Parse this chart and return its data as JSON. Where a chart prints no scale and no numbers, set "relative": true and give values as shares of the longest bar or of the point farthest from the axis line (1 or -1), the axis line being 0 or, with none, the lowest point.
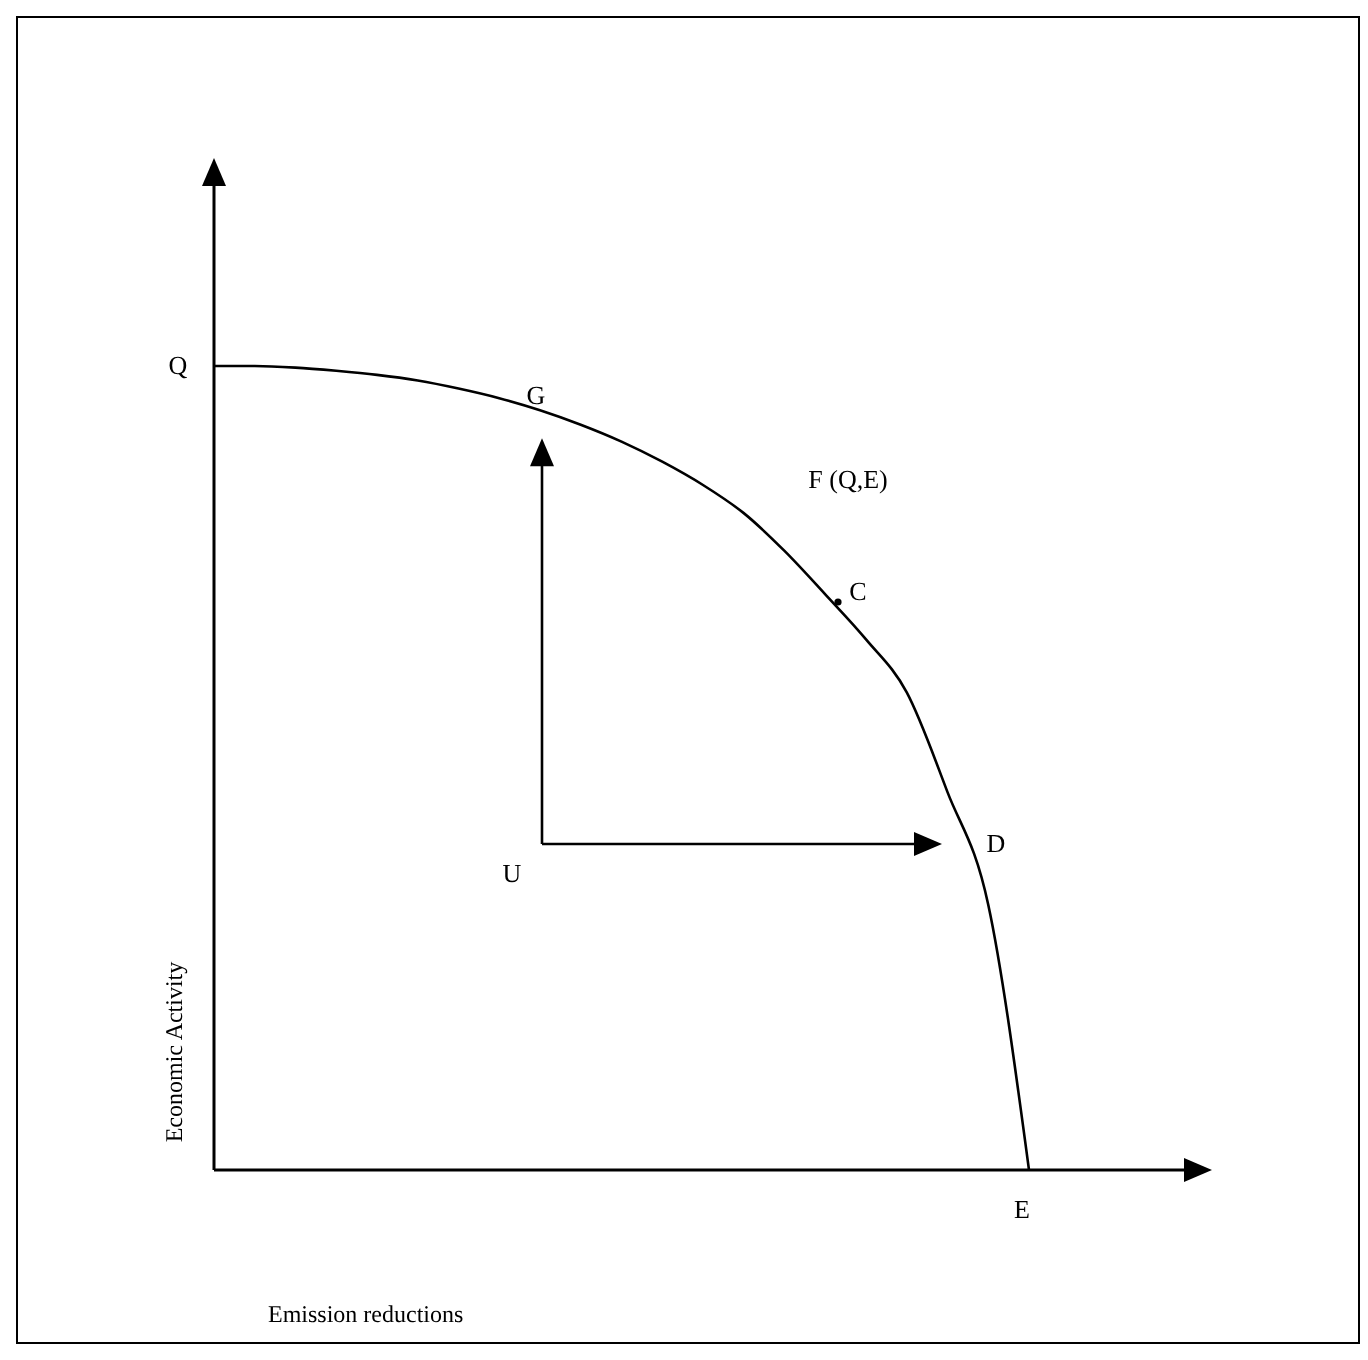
{
  "chart_data": {
    "type": "line",
    "relative": true,
    "ylabel": "Economic Activity",
    "grid": false,
    "legend": false,
    "categories": [
      null,
      null,
      null,
      null,
      null,
      null,
      null,
      null,
      null,
      null,
      null,
      null,
      null,
      null,
      null,
      null,
      null,
      null,
      null,
      null,
      null,
      null,
      null,
      null,
      null
    ],
    "series": [
      {
        "color": "#000000",
        "values": [
          1,
          1,
          0.998,
          0.994,
          0.989,
          0.982,
          0.972,
          0.96,
          0.945,
          0.927,
          0.906,
          0.881,
          0.852,
          0.817,
          0.77,
          0.716,
          0.66,
          0.594,
          0.47,
          0.33,
          0,
          null,
          null,
          null,
          null
        ]
      }
    ],
    "annotations": [
      "Q",
      "G",
      "F (Q,E)",
      "C",
      "U",
      "D",
      "E",
      "Emission reductions"
    ]
  }
}
